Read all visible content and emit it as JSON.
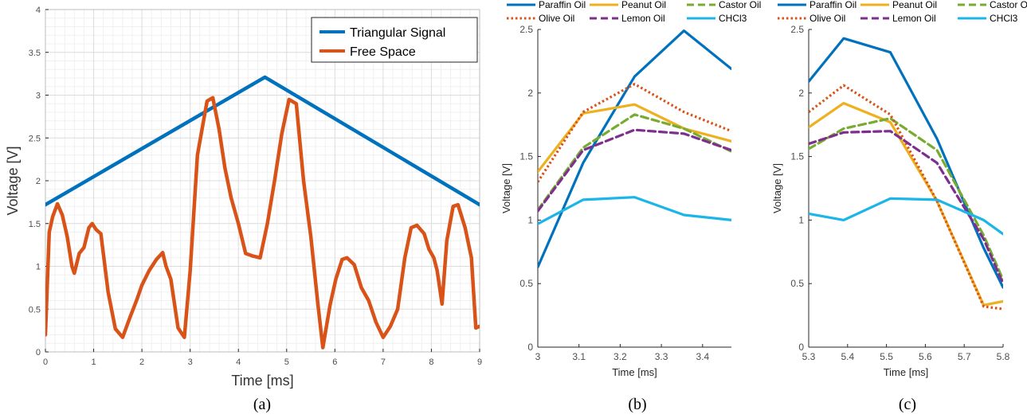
{
  "chart_data": [
    {
      "type": "line",
      "panel_label": "(a)",
      "xlabel": "Time [ms]",
      "ylabel": "Voltage [V]",
      "xlim": [
        0,
        9
      ],
      "ylim": [
        0,
        4
      ],
      "xticks": [
        0,
        1,
        2,
        3,
        4,
        5,
        6,
        7,
        8,
        9
      ],
      "yticks": [
        0,
        0.5,
        1,
        1.5,
        2,
        2.5,
        3,
        3.5,
        4
      ],
      "grid": true,
      "legend_position": "top-right",
      "series": [
        {
          "name": "Triangular Signal",
          "color": "#0072BD",
          "x": [
            0,
            4.55,
            9
          ],
          "y": [
            1.72,
            3.21,
            1.72
          ]
        },
        {
          "name": "Free Space",
          "color": "#D95319",
          "x": [
            0,
            0.08,
            0.15,
            0.25,
            0.35,
            0.45,
            0.55,
            0.6,
            0.7,
            0.8,
            0.9,
            0.97,
            1.05,
            1.15,
            1.3,
            1.45,
            1.6,
            1.75,
            1.9,
            2.0,
            2.15,
            2.3,
            2.43,
            2.5,
            2.6,
            2.75,
            2.88,
            3.0,
            3.15,
            3.35,
            3.47,
            3.6,
            3.72,
            3.85,
            4.0,
            4.15,
            4.3,
            4.45,
            4.6,
            4.75,
            4.9,
            5.05,
            5.2,
            5.35,
            5.5,
            5.65,
            5.75,
            5.9,
            6.02,
            6.15,
            6.25,
            6.4,
            6.55,
            6.7,
            6.85,
            7.0,
            7.15,
            7.3,
            7.45,
            7.58,
            7.7,
            7.85,
            7.95,
            8.05,
            8.12,
            8.22,
            8.32,
            8.45,
            8.55,
            8.7,
            8.83,
            8.92,
            9.0
          ],
          "y": [
            0.2,
            1.4,
            1.58,
            1.73,
            1.6,
            1.35,
            1.0,
            0.92,
            1.15,
            1.22,
            1.45,
            1.5,
            1.43,
            1.38,
            0.7,
            0.27,
            0.17,
            0.4,
            0.62,
            0.78,
            0.95,
            1.08,
            1.16,
            1.0,
            0.85,
            0.28,
            0.17,
            0.95,
            2.3,
            2.93,
            2.97,
            2.6,
            2.15,
            1.8,
            1.5,
            1.15,
            1.12,
            1.1,
            1.5,
            2.0,
            2.55,
            2.95,
            2.9,
            2.0,
            1.35,
            0.55,
            0.05,
            0.55,
            0.85,
            1.08,
            1.1,
            1.02,
            0.75,
            0.6,
            0.35,
            0.17,
            0.3,
            0.5,
            1.1,
            1.45,
            1.48,
            1.38,
            1.2,
            1.1,
            0.95,
            0.56,
            1.3,
            1.7,
            1.72,
            1.45,
            1.1,
            0.28,
            0.3
          ]
        }
      ]
    },
    {
      "type": "line",
      "panel_label": "(b)",
      "xlabel": "Time [ms]",
      "ylabel": "Voltage [V]",
      "xlim": [
        3.0,
        3.47
      ],
      "ylim": [
        0,
        2.5
      ],
      "xticks": [
        3,
        3.1,
        3.2,
        3.3,
        3.4
      ],
      "yticks": [
        0,
        0.5,
        1,
        1.5,
        2,
        2.5
      ],
      "grid": false,
      "legend_position": "top-outside",
      "series": [
        {
          "name": "Paraffin Oil",
          "color": "#0072BD",
          "dash": "solid",
          "x": [
            3.0,
            3.11,
            3.235,
            3.355,
            3.47
          ],
          "y": [
            0.63,
            1.45,
            2.13,
            2.49,
            2.19
          ]
        },
        {
          "name": "Peanut Oil",
          "color": "#EDB120",
          "dash": "solid",
          "x": [
            3.0,
            3.11,
            3.235,
            3.355,
            3.47
          ],
          "y": [
            1.38,
            1.84,
            1.91,
            1.72,
            1.62
          ]
        },
        {
          "name": "Castor Oil",
          "color": "#77AC30",
          "dash": "dashed",
          "x": [
            3.0,
            3.11,
            3.235,
            3.355,
            3.47
          ],
          "y": [
            1.08,
            1.57,
            1.83,
            1.72,
            1.54
          ]
        },
        {
          "name": "Olive Oil",
          "color": "#D95319",
          "dash": "dotted",
          "x": [
            3.0,
            3.11,
            3.235,
            3.355,
            3.47
          ],
          "y": [
            1.3,
            1.85,
            2.07,
            1.85,
            1.7
          ]
        },
        {
          "name": "Lemon Oil",
          "color": "#7E2F8E",
          "dash": "dashed",
          "x": [
            3.0,
            3.11,
            3.235,
            3.355,
            3.47
          ],
          "y": [
            1.07,
            1.55,
            1.71,
            1.68,
            1.55
          ]
        },
        {
          "name": "CHCl3",
          "color": "#1BB5E8",
          "dash": "solid",
          "x": [
            3.0,
            3.11,
            3.235,
            3.355,
            3.47
          ],
          "y": [
            0.97,
            1.16,
            1.18,
            1.04,
            1.0
          ]
        }
      ]
    },
    {
      "type": "line",
      "panel_label": "(c)",
      "xlabel": "Time [ms]",
      "ylabel": "Voltage [V]",
      "xlim": [
        5.3,
        5.8
      ],
      "ylim": [
        0,
        2.5
      ],
      "xticks": [
        5.3,
        5.4,
        5.5,
        5.6,
        5.7,
        5.8
      ],
      "yticks": [
        0,
        0.5,
        1,
        1.5,
        2,
        2.5
      ],
      "grid": false,
      "legend_position": "top-outside",
      "series": [
        {
          "name": "Paraffin Oil",
          "color": "#0072BD",
          "dash": "solid",
          "x": [
            5.3,
            5.39,
            5.51,
            5.63,
            5.75,
            5.8
          ],
          "y": [
            2.09,
            2.43,
            2.32,
            1.64,
            0.78,
            0.47
          ]
        },
        {
          "name": "Peanut Oil",
          "color": "#EDB120",
          "dash": "solid",
          "x": [
            5.3,
            5.39,
            5.51,
            5.63,
            5.75,
            5.8
          ],
          "y": [
            1.73,
            1.92,
            1.77,
            1.15,
            0.33,
            0.36
          ]
        },
        {
          "name": "Castor Oil",
          "color": "#77AC30",
          "dash": "dashed",
          "x": [
            5.3,
            5.39,
            5.51,
            5.63,
            5.75,
            5.8
          ],
          "y": [
            1.56,
            1.72,
            1.8,
            1.55,
            0.88,
            0.53
          ]
        },
        {
          "name": "Olive Oil",
          "color": "#D95319",
          "dash": "dotted",
          "x": [
            5.3,
            5.39,
            5.51,
            5.63,
            5.75,
            5.8
          ],
          "y": [
            1.85,
            2.06,
            1.83,
            1.15,
            0.32,
            0.3
          ]
        },
        {
          "name": "Lemon Oil",
          "color": "#7E2F8E",
          "dash": "dashed",
          "x": [
            5.3,
            5.39,
            5.51,
            5.63,
            5.75,
            5.8
          ],
          "y": [
            1.6,
            1.69,
            1.7,
            1.45,
            0.85,
            0.5
          ]
        },
        {
          "name": "CHCl3",
          "color": "#1BB5E8",
          "dash": "solid",
          "x": [
            5.3,
            5.39,
            5.51,
            5.63,
            5.75,
            5.8
          ],
          "y": [
            1.05,
            1.0,
            1.17,
            1.16,
            1.0,
            0.89
          ]
        }
      ]
    }
  ]
}
